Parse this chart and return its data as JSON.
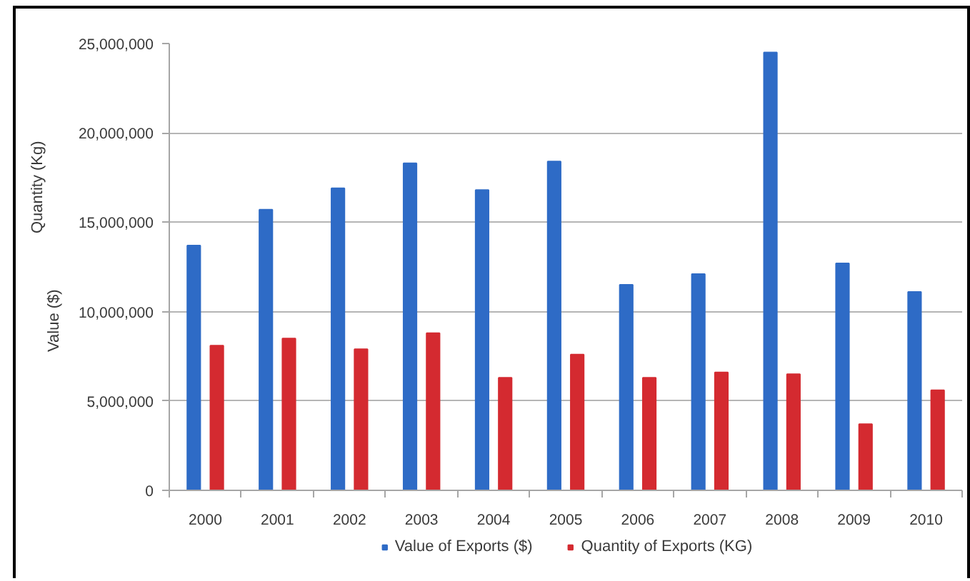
{
  "chart_data": {
    "type": "bar",
    "categories": [
      "2000",
      "2001",
      "2002",
      "2003",
      "2004",
      "2005",
      "2006",
      "2007",
      "2008",
      "2009",
      "2010"
    ],
    "series": [
      {
        "name": "Value of Exports ($)",
        "color": "#2e6bc6",
        "values": [
          13700000,
          15700000,
          16900000,
          18300000,
          16800000,
          18400000,
          11500000,
          12100000,
          24500000,
          12700000,
          11100000
        ]
      },
      {
        "name": "Quantity of Exports (KG)",
        "color": "#d42a30",
        "values": [
          8100000,
          8500000,
          7900000,
          8800000,
          6300000,
          7600000,
          6300000,
          6600000,
          6500000,
          3700000,
          5600000
        ]
      }
    ],
    "ylabel": "Value ($)",
    "annotations": [
      "Quantity (Kg)"
    ],
    "ylim": [
      0,
      25000000
    ],
    "yticks": [
      0,
      {
        "value": 5000000,
        "label": "5,000,000"
      },
      {
        "value": 10000000,
        "label": "10,000,000"
      },
      {
        "value": 15000000,
        "label": "15,000,000"
      },
      {
        "value": 20000000,
        "label": "20,000,000"
      },
      {
        "value": 25000000,
        "label": "25,000,000"
      }
    ],
    "grid": "y",
    "legend": "bottom"
  }
}
